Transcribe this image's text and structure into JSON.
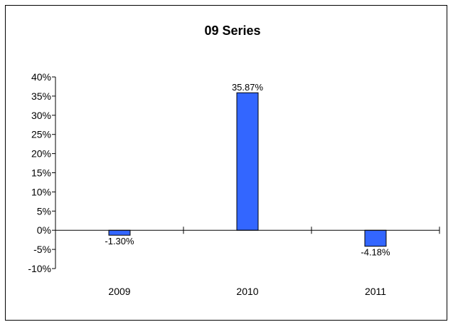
{
  "chart_data": {
    "type": "bar",
    "title": "09 Series",
    "xlabel": "",
    "ylabel": "",
    "categories": [
      "2009",
      "2010",
      "2011"
    ],
    "values": [
      -1.3,
      35.87,
      -4.18
    ],
    "data_labels": [
      "-1.30%",
      "35.87%",
      "-4.18%"
    ],
    "ylim": [
      -10,
      40
    ],
    "yticks": [
      40,
      35,
      30,
      25,
      20,
      15,
      10,
      5,
      0,
      -5,
      -10
    ],
    "ytick_labels": [
      "40%",
      "35%",
      "30%",
      "25%",
      "20%",
      "15%",
      "10%",
      "5%",
      "0%",
      "-5%",
      "-10%"
    ],
    "grid": false,
    "legend": "none",
    "bar_color": "#3366ff"
  }
}
